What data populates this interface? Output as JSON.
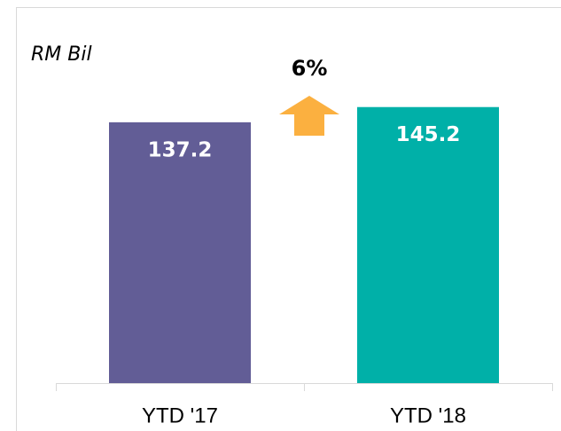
{
  "chart_data": {
    "type": "bar",
    "y_label": "RM Bil",
    "annotation": "6%",
    "categories": [
      "YTD '17",
      "YTD '18"
    ],
    "values": [
      137.2,
      145.2
    ],
    "colors": [
      "#625d96",
      "#00b0a8"
    ],
    "ylim": [
      0,
      160
    ],
    "grid": false
  }
}
